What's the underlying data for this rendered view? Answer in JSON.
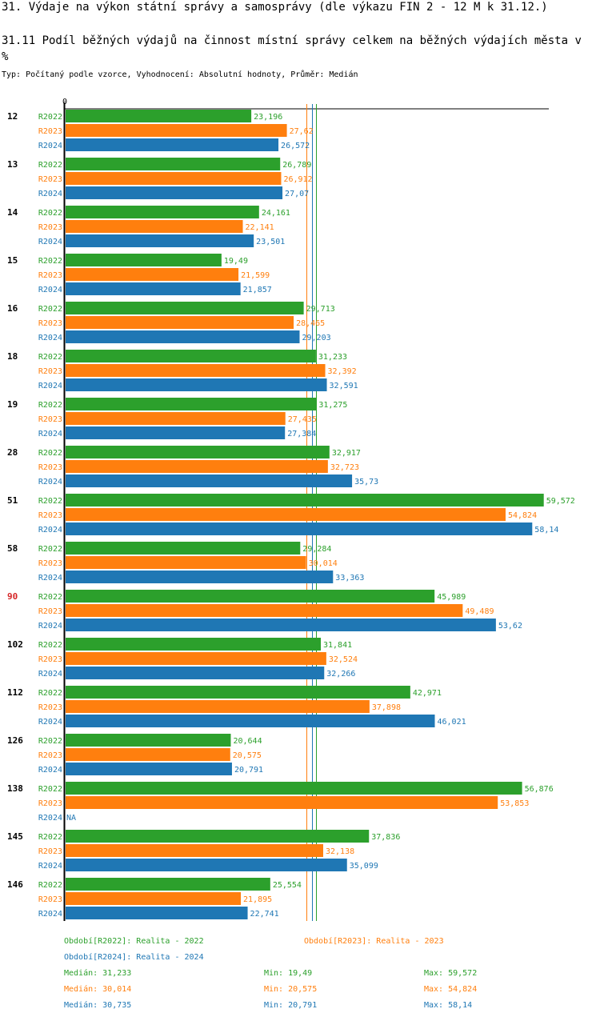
{
  "page": {
    "title": "31. Výdaje na výkon státní správy a samosprávy (dle výkazu FIN 2 - 12 M k 31.12.)",
    "subtitle": "31.11 Podíl běžných výdajů na činnost místní správy celkem na běžných výdajích města v %",
    "meta": "Typ: Počítaný podle vzorce, Vyhodnocení: Absolutní hodnoty, Průměr: Medián"
  },
  "colors": {
    "R2022": "#2ca02c",
    "R2023": "#ff7f0e",
    "R2024": "#1f77b4",
    "highlight": "#d62728",
    "axis": "#000000"
  },
  "chart_data": {
    "type": "bar",
    "orientation": "horizontal",
    "title": "31.11 Podíl běžných výdajů na činnost místní správy celkem na běžných výdajích města v %",
    "xlabel": "",
    "ylabel": "",
    "x_tick_labels": [
      "0"
    ],
    "xlim": [
      0,
      60
    ],
    "categories": [
      "12",
      "13",
      "14",
      "15",
      "16",
      "18",
      "19",
      "28",
      "51",
      "58",
      "90",
      "102",
      "112",
      "126",
      "138",
      "145",
      "146"
    ],
    "highlighted_category": "90",
    "series": [
      {
        "name": "R2022",
        "values": [
          23.196,
          26.789,
          24.161,
          19.49,
          29.713,
          31.233,
          31.275,
          32.917,
          59.572,
          29.284,
          45.989,
          31.841,
          42.971,
          20.644,
          56.876,
          37.836,
          25.554
        ],
        "labels": [
          "23,196",
          "26,789",
          "24,161",
          "19,49",
          "29,713",
          "31,233",
          "31,275",
          "32,917",
          "59,572",
          "29,284",
          "45,989",
          "31,841",
          "42,971",
          "20,644",
          "56,876",
          "37,836",
          "25,554"
        ]
      },
      {
        "name": "R2023",
        "values": [
          27.62,
          26.912,
          22.141,
          21.599,
          28.465,
          32.392,
          27.435,
          32.723,
          54.824,
          30.014,
          49.489,
          32.524,
          37.898,
          20.575,
          53.853,
          32.138,
          21.895
        ],
        "labels": [
          "27,62",
          "26,912",
          "22,141",
          "21,599",
          "28,465",
          "32,392",
          "27,435",
          "32,723",
          "54,824",
          "30,014",
          "49,489",
          "32,524",
          "37,898",
          "20,575",
          "53,853",
          "32,138",
          "21,895"
        ]
      },
      {
        "name": "R2024",
        "values": [
          26.572,
          27.07,
          23.501,
          21.857,
          29.203,
          32.591,
          27.384,
          35.73,
          58.14,
          33.363,
          53.62,
          32.266,
          46.021,
          20.791,
          null,
          35.099,
          22.741
        ],
        "labels": [
          "26,572",
          "27,07",
          "23,501",
          "21,857",
          "29,203",
          "32,591",
          "27,384",
          "35,73",
          "58,14",
          "33,363",
          "53,62",
          "32,266",
          "46,021",
          "20,791",
          "NA",
          "35,099",
          "22,741"
        ]
      }
    ],
    "medians": {
      "R2022": 31.233,
      "R2023": 30.014,
      "R2024": 30.735
    },
    "legend": {
      "placement": "bottom",
      "periods": [
        {
          "series": "R2022",
          "text": "Období[R2022]: Realita - 2022"
        },
        {
          "series": "R2023",
          "text": "Období[R2023]: Realita - 2023"
        },
        {
          "series": "R2024",
          "text": "Období[R2024]: Realita - 2024"
        }
      ],
      "stats": [
        {
          "series": "R2022",
          "median": "Medián: 31,233",
          "min": "Min: 19,49",
          "max": "Max: 59,572"
        },
        {
          "series": "R2023",
          "median": "Medián: 30,014",
          "min": "Min: 20,575",
          "max": "Max: 54,824"
        },
        {
          "series": "R2024",
          "median": "Medián: 30,735",
          "min": "Min: 20,791",
          "max": "Max: 58,14"
        }
      ]
    }
  }
}
